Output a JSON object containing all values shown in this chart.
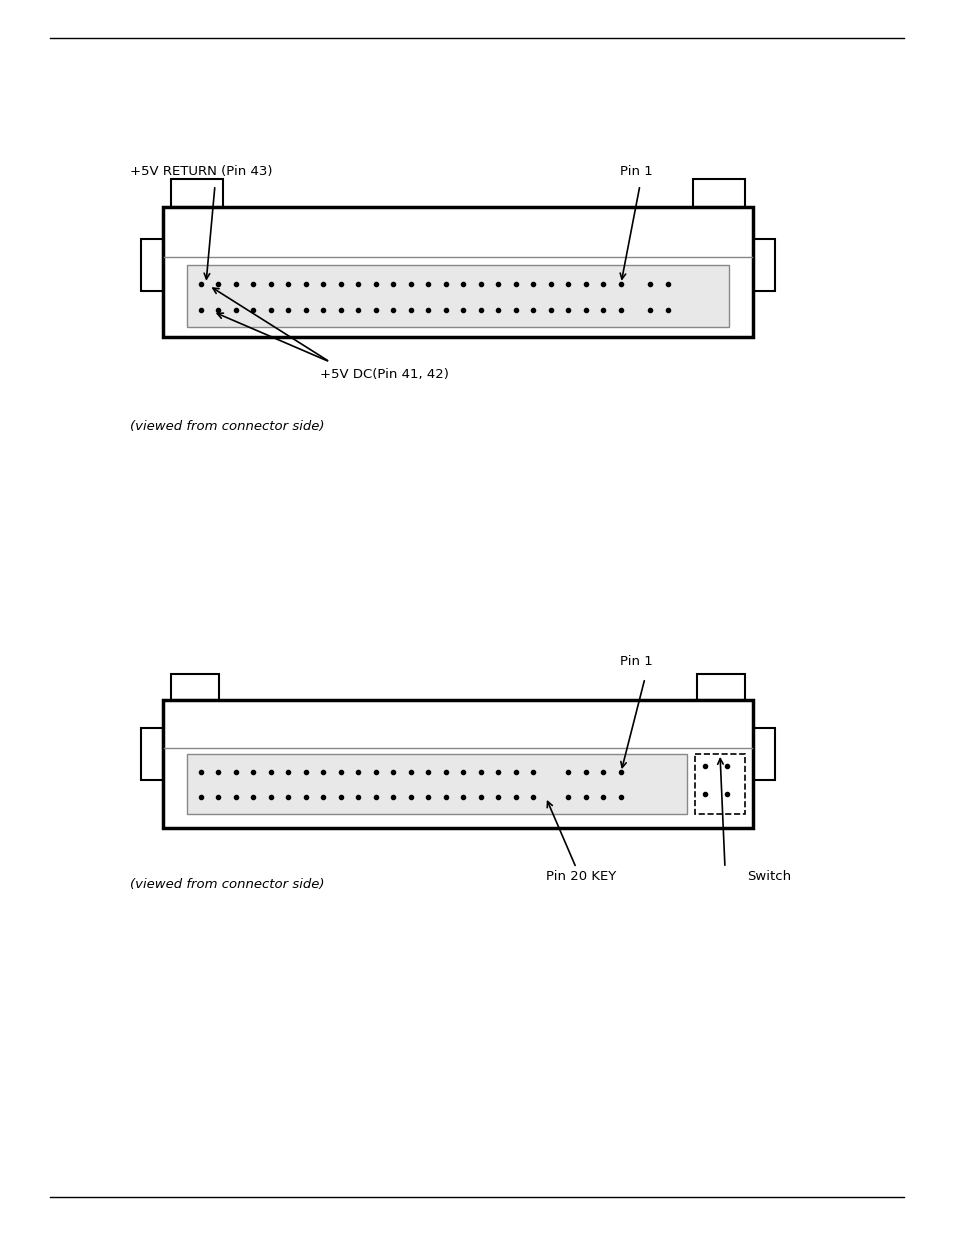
{
  "bg_color": "#ffffff",
  "line_color": "#000000",
  "diagram1": {
    "label_5v_return": "+5V RETURN (Pin 43)",
    "label_pin1": "Pin 1",
    "label_5v_dc": "+5V DC(Pin 41, 42)",
    "label_viewed": "(viewed from connector side)"
  },
  "diagram2": {
    "label_pin1": "Pin 1",
    "label_pin20key": "Pin 20 KEY",
    "label_switch": "Switch",
    "label_viewed": "(viewed from connector side)"
  }
}
